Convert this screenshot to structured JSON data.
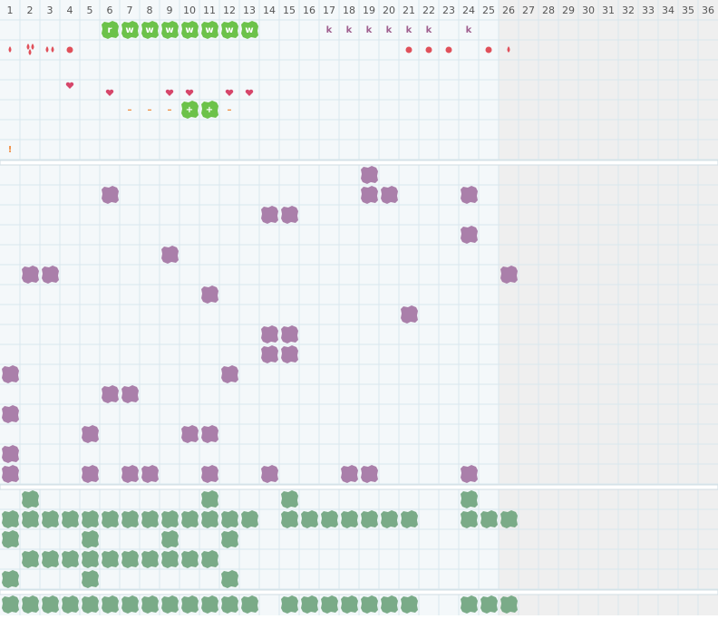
{
  "columns": [
    1,
    2,
    3,
    4,
    5,
    6,
    7,
    8,
    9,
    10,
    11,
    12,
    13,
    14,
    15,
    16,
    17,
    18,
    19,
    20,
    21,
    22,
    23,
    24,
    25,
    26,
    27,
    28,
    29,
    30,
    31,
    32,
    33,
    34,
    35,
    36
  ],
  "top": {
    "green_letters": [
      "r",
      "w",
      "w",
      "w",
      "w",
      "w",
      "w",
      "w"
    ],
    "k_letters": [
      "k",
      "k",
      "k",
      "k",
      "k",
      "k",
      "k"
    ],
    "plus_letters": [
      "+",
      "+"
    ],
    "dash_letters": [
      "–",
      "–",
      "–",
      "–"
    ],
    "alert": [
      "!"
    ]
  }
}
